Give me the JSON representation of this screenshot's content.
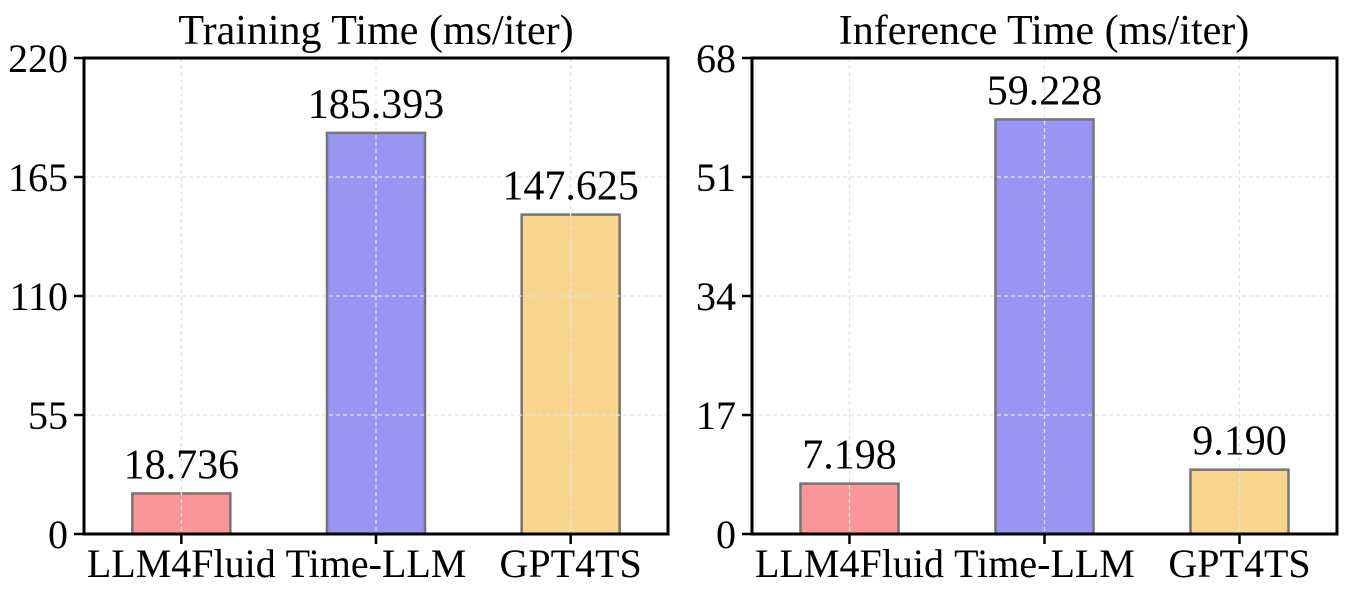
{
  "figure": {
    "background": "#ffffff",
    "text_color": "#000000",
    "axis_color": "#000000",
    "grid_color": "#e3e3e3",
    "grid_style": "dashed",
    "bar_edge_color": "#757575",
    "bar_colors": [
      "#fa9699",
      "#9896f2",
      "#fad58e"
    ]
  },
  "chart_data": [
    {
      "type": "bar",
      "title": "Training Time (ms/iter)",
      "categories": [
        "LLM4Fluid",
        "Time-LLM",
        "GPT4TS"
      ],
      "values": [
        18.736,
        185.393,
        147.625
      ],
      "value_labels": [
        "18.736",
        "185.393",
        "147.625"
      ],
      "ylim": [
        0,
        220
      ],
      "yticks": [
        0,
        55,
        110,
        165,
        220
      ],
      "xlabel": "",
      "ylabel": "",
      "grid": "dashed-both",
      "legend": "none"
    },
    {
      "type": "bar",
      "title": "Inference Time (ms/iter)",
      "categories": [
        "LLM4Fluid",
        "Time-LLM",
        "GPT4TS"
      ],
      "values": [
        7.198,
        59.228,
        9.19
      ],
      "value_labels": [
        "7.198",
        "59.228",
        "9.190"
      ],
      "ylim": [
        0,
        68
      ],
      "yticks": [
        0,
        17,
        34,
        51,
        68
      ],
      "xlabel": "",
      "ylabel": "",
      "grid": "dashed-both",
      "legend": "none"
    }
  ]
}
